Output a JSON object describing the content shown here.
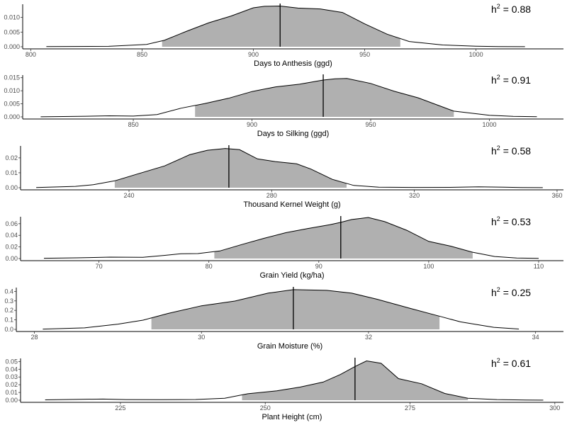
{
  "chart_data": [
    {
      "type": "area",
      "xlabel": "Days to Anthesis (ggd)",
      "annotation": {
        "prefix": "h",
        "sup": "2",
        "suffix": " = 0.88"
      },
      "xlim": [
        797,
        1038
      ],
      "ylim": [
        0,
        0.0145
      ],
      "xticks": [
        800,
        850,
        900,
        950,
        1000
      ],
      "yticks": [
        0.0,
        0.005,
        0.01
      ],
      "ytick_labels": [
        "0.000",
        "0.005",
        "0.010"
      ],
      "x": [
        807,
        835,
        852,
        860,
        870,
        880,
        890,
        900,
        905,
        912,
        920,
        930,
        940,
        950,
        960,
        970,
        985,
        1000,
        1010,
        1022
      ],
      "y": [
        4e-05,
        0.00015,
        0.0008,
        0.0022,
        0.0053,
        0.0082,
        0.0105,
        0.0133,
        0.0138,
        0.0139,
        0.0132,
        0.0129,
        0.0117,
        0.0078,
        0.0043,
        0.0018,
        0.0006,
        0.0002,
        5e-05,
        2e-05
      ],
      "shade_range": [
        859,
        966
      ],
      "vline": 912
    },
    {
      "type": "area",
      "xlabel": "Days to Silking (ggd)",
      "annotation": {
        "prefix": "h",
        "sup": "2",
        "suffix": " = 0.91"
      },
      "xlim": [
        804,
        1030
      ],
      "ylim": [
        0,
        0.016
      ],
      "xticks": [
        850,
        900,
        950,
        1000
      ],
      "yticks": [
        0.0,
        0.005,
        0.01,
        0.015
      ],
      "ytick_labels": [
        "0.000",
        "0.005",
        "0.010",
        "0.015"
      ],
      "x": [
        811,
        830,
        840,
        850,
        860,
        870,
        880,
        890,
        900,
        910,
        920,
        930,
        935,
        940,
        950,
        960,
        970,
        985,
        1000,
        1010,
        1020
      ],
      "y": [
        3e-05,
        0.00025,
        0.0004,
        0.0003,
        0.0009,
        0.0033,
        0.0051,
        0.0071,
        0.0097,
        0.0115,
        0.0125,
        0.0141,
        0.0146,
        0.0147,
        0.0128,
        0.0098,
        0.0073,
        0.0022,
        0.0006,
        0.0002,
        5e-05
      ],
      "shade_range": [
        876,
        985
      ],
      "vline": 930
    },
    {
      "type": "area",
      "xlabel": "Thousand Kernel Weight (g)",
      "annotation": {
        "prefix": "h",
        "sup": "2",
        "suffix": " = 0.58"
      },
      "xlim": [
        210,
        361
      ],
      "ylim": [
        0,
        0.028
      ],
      "xticks": [
        240,
        280,
        320,
        360
      ],
      "yticks": [
        0.0,
        0.01,
        0.02
      ],
      "ytick_labels": [
        "0.00",
        "0.01",
        "0.02"
      ],
      "x": [
        214,
        225,
        230,
        236,
        242,
        250,
        257,
        262,
        267,
        271,
        276,
        281,
        287,
        291,
        297,
        303,
        310,
        320,
        330,
        338,
        345,
        350,
        356
      ],
      "y": [
        0.00015,
        0.0009,
        0.002,
        0.0046,
        0.0089,
        0.0146,
        0.0221,
        0.0251,
        0.0263,
        0.0255,
        0.0193,
        0.0175,
        0.016,
        0.0125,
        0.0056,
        0.0015,
        0.0004,
        0.0002,
        0.00025,
        0.0006,
        0.0004,
        0.0001,
        3e-05
      ],
      "shade_range": [
        236,
        301
      ],
      "vline": 268
    },
    {
      "type": "area",
      "xlabel": "Grain Yield (kg/ha)",
      "annotation": {
        "prefix": "h",
        "sup": "2",
        "suffix": " = 0.53"
      },
      "xlim": [
        63,
        112
      ],
      "ylim": [
        0,
        0.072
      ],
      "xticks": [
        70,
        80,
        90,
        100,
        110
      ],
      "yticks": [
        0.0,
        0.02,
        0.04,
        0.06
      ],
      "ytick_labels": [
        "0.00",
        "0.02",
        "0.04",
        "0.06"
      ],
      "x": [
        65,
        68,
        71,
        74,
        76,
        77.5,
        79,
        81,
        83,
        85,
        87,
        89,
        91,
        92,
        93,
        94.5,
        96,
        98,
        100,
        102,
        104,
        106,
        108,
        110
      ],
      "y": [
        0.0005,
        0.0012,
        0.0024,
        0.0022,
        0.0055,
        0.0083,
        0.0085,
        0.0131,
        0.0242,
        0.0348,
        0.0446,
        0.0517,
        0.0583,
        0.0623,
        0.0673,
        0.0708,
        0.0636,
        0.0487,
        0.0295,
        0.0214,
        0.0108,
        0.0035,
        0.0008,
        0.0002
      ],
      "shade_range": [
        80.5,
        104
      ],
      "vline": 92
    },
    {
      "type": "area",
      "xlabel": "Grain Moisture (%)",
      "annotation": {
        "prefix": "h",
        "sup": "2",
        "suffix": " = 0.25"
      },
      "xlim": [
        27.8,
        34.3
      ],
      "ylim": [
        0,
        0.44
      ],
      "xticks": [
        28,
        30,
        32,
        34
      ],
      "yticks": [
        0.0,
        0.1,
        0.2,
        0.3,
        0.4
      ],
      "ytick_labels": [
        "0.0",
        "0.1",
        "0.2",
        "0.3",
        "0.4"
      ],
      "x": [
        28.1,
        28.6,
        29.0,
        29.3,
        29.6,
        30.0,
        30.4,
        30.8,
        31.1,
        31.5,
        31.8,
        32.1,
        32.5,
        32.8,
        33.1,
        33.5,
        33.8
      ],
      "y": [
        0.003,
        0.016,
        0.055,
        0.097,
        0.168,
        0.248,
        0.298,
        0.382,
        0.418,
        0.411,
        0.381,
        0.318,
        0.221,
        0.151,
        0.079,
        0.022,
        0.004
      ],
      "shade_range": [
        29.4,
        32.85
      ],
      "vline": 31.1
    },
    {
      "type": "area",
      "xlabel": "Plant Height (cm)",
      "annotation": {
        "prefix": "h",
        "sup": "2",
        "suffix": " = 0.61"
      },
      "xlim": [
        208,
        301
      ],
      "ylim": [
        0,
        0.054
      ],
      "xticks": [
        225,
        250,
        275,
        300
      ],
      "yticks": [
        0.0,
        0.01,
        0.02,
        0.03,
        0.04,
        0.05
      ],
      "ytick_labels": [
        "0.00",
        "0.01",
        "0.02",
        "0.03",
        "0.04",
        "0.05"
      ],
      "x": [
        212,
        218,
        222,
        226,
        232,
        238,
        243,
        247,
        252,
        256,
        260,
        263,
        265.5,
        267.5,
        270,
        273,
        277,
        281,
        285,
        290,
        295,
        298
      ],
      "y": [
        0.0005,
        0.0012,
        0.0015,
        0.0008,
        0.0006,
        0.0009,
        0.0025,
        0.0083,
        0.0121,
        0.0169,
        0.0234,
        0.0333,
        0.0436,
        0.0508,
        0.0477,
        0.0279,
        0.0212,
        0.0087,
        0.0025,
        0.0008,
        0.0002,
        5e-05
      ],
      "shade_range": [
        246,
        285
      ],
      "vline": 265.5
    }
  ]
}
